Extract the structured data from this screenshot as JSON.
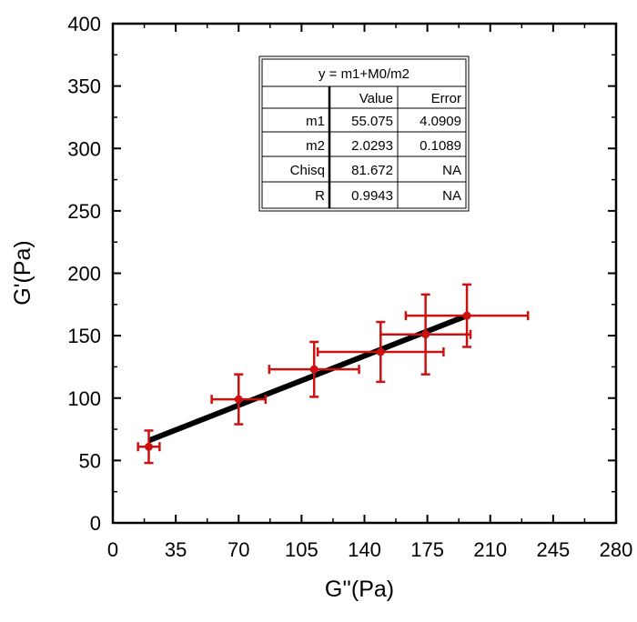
{
  "chart_data": {
    "type": "scatter",
    "xlabel": "G''(Pa)",
    "ylabel": "G'(Pa)",
    "xlim": [
      0,
      280
    ],
    "ylim": [
      0,
      400
    ],
    "xticks": [
      0,
      35,
      70,
      105,
      140,
      175,
      210,
      245,
      280
    ],
    "yticks": [
      0,
      50,
      100,
      150,
      200,
      250,
      300,
      350,
      400
    ],
    "points": [
      {
        "x": 20,
        "y": 61,
        "xerr": 6,
        "yerr": 13
      },
      {
        "x": 70,
        "y": 99,
        "xerr": 15,
        "yerr": 20
      },
      {
        "x": 112,
        "y": 123,
        "xerr": 25,
        "yerr": 22
      },
      {
        "x": 149,
        "y": 137,
        "xerr": 35,
        "yerr": 24
      },
      {
        "x": 174,
        "y": 151,
        "xerr": 25,
        "yerr": 32
      },
      {
        "x": 197,
        "y": 166,
        "xerr": 34,
        "yerr": 25
      }
    ],
    "fit_line": {
      "x": [
        20,
        197
      ],
      "y": [
        66,
        166
      ]
    },
    "fit_table": {
      "title": "y = m1+M0/m2",
      "headers": [
        "",
        "Value",
        "Error"
      ],
      "rows": [
        [
          "m1",
          "55.075",
          "4.0909"
        ],
        [
          "m2",
          "2.0293",
          "0.1089"
        ],
        [
          "Chisq",
          "81.672",
          "NA"
        ],
        [
          "R",
          "0.9943",
          "NA"
        ]
      ]
    },
    "colors": {
      "points": "#cc1111",
      "fit": "#000000"
    }
  }
}
